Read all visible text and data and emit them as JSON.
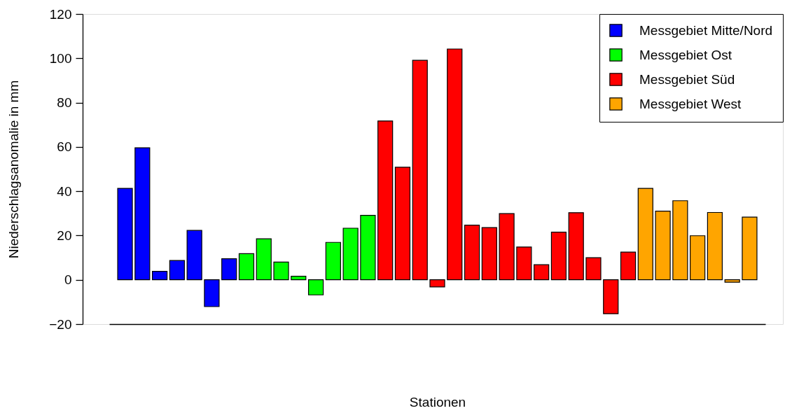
{
  "chart_data": {
    "type": "bar",
    "xlabel": "Stationen",
    "ylabel": "Niederschlagsanomalie in mm",
    "categories": [
      null,
      null,
      null,
      null,
      null,
      null,
      null,
      null,
      null,
      null,
      null,
      null,
      null,
      null,
      null,
      null,
      null,
      null,
      null,
      null,
      null,
      null,
      null,
      null,
      null,
      null,
      null,
      null,
      null,
      null,
      null,
      null,
      null,
      null,
      null,
      null,
      null
    ],
    "series": [
      {
        "name": "Messgebiet Mitte/Nord",
        "color": "#0000ff",
        "values": [
          41.3,
          59.6,
          3.8,
          8.7,
          22.3,
          -12.1,
          9.5,
          null,
          null,
          null,
          null,
          null,
          null,
          null,
          null,
          null,
          null,
          null,
          null,
          null,
          null,
          null,
          null,
          null,
          null,
          null,
          null,
          null,
          null,
          null,
          null,
          null,
          null,
          null,
          null,
          null,
          null
        ]
      },
      {
        "name": "Messgebiet Ost",
        "color": "#00ff00",
        "values": [
          null,
          null,
          null,
          null,
          null,
          null,
          null,
          11.8,
          18.5,
          8.0,
          1.6,
          -6.8,
          16.9,
          23.3,
          29.1,
          null,
          null,
          null,
          null,
          null,
          null,
          null,
          null,
          null,
          null,
          null,
          null,
          null,
          null,
          null,
          null,
          null,
          null,
          null,
          null,
          null,
          null
        ]
      },
      {
        "name": "Messgebiet Süd",
        "color": "#ff0000",
        "values": [
          null,
          null,
          null,
          null,
          null,
          null,
          null,
          null,
          null,
          null,
          null,
          null,
          null,
          null,
          null,
          71.7,
          50.8,
          99.1,
          -3.2,
          104.2,
          24.7,
          23.6,
          29.9,
          14.8,
          6.8,
          21.5,
          30.3,
          10.0,
          -15.3,
          12.5,
          null,
          null,
          null,
          null,
          null,
          null,
          null
        ]
      },
      {
        "name": "Messgebiet West",
        "color": "#ffa500",
        "values": [
          null,
          null,
          null,
          null,
          null,
          null,
          null,
          null,
          null,
          null,
          null,
          null,
          null,
          null,
          null,
          null,
          null,
          null,
          null,
          null,
          null,
          null,
          null,
          null,
          null,
          null,
          null,
          null,
          null,
          null,
          41.3,
          31.0,
          35.7,
          19.9,
          30.4,
          -1.1,
          28.3
        ]
      }
    ],
    "ylim": [
      -20,
      120
    ],
    "yticks": [
      -20,
      0,
      20,
      40,
      60,
      80,
      100,
      120
    ],
    "grid": false,
    "legend": "top right",
    "tick_labels": "y"
  }
}
